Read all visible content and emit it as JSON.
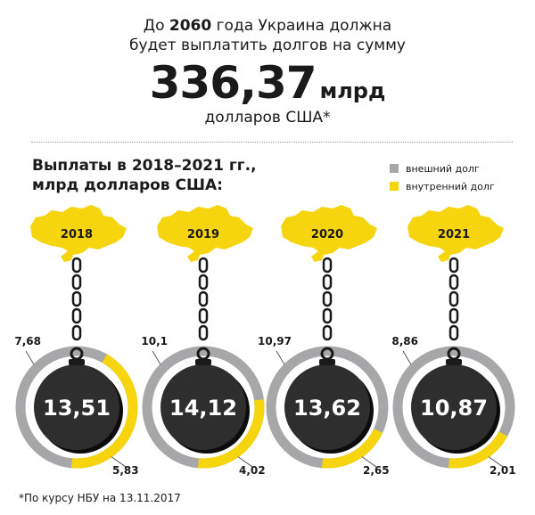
{
  "header": {
    "intro_pre": "До ",
    "intro_year": "2060",
    "intro_post": " года Украина должна",
    "intro_line2": "будет выплатить долгов на сумму",
    "total_value": "336,37",
    "total_unit": "млрд",
    "currency": "долларов США*"
  },
  "subtitle": {
    "line1": "Выплаты в 2018–2021 гг.,",
    "line2": "млрд долларов США:"
  },
  "legend": [
    {
      "label": "внешний долг",
      "color": "#a7a7a9"
    },
    {
      "label": "внутренний долг",
      "color": "#f6d40e"
    }
  ],
  "footnote": "*По курсу НБУ на 13.11.2017",
  "colors": {
    "map": "#f6d40e",
    "ball": "#2e2e2e",
    "external": "#a7a7a9",
    "internal": "#f6d40e"
  },
  "years": [
    {
      "year": "2018",
      "total": "13,51",
      "external": "7,68",
      "internal": "5,83"
    },
    {
      "year": "2019",
      "total": "14,12",
      "external": "10,1",
      "internal": "4,02"
    },
    {
      "year": "2020",
      "total": "13,62",
      "external": "10,97",
      "internal": "2,65"
    },
    {
      "year": "2021",
      "total": "10,87",
      "external": "8,86",
      "internal": "2,01"
    }
  ],
  "chart_data": {
    "type": "pie",
    "title": "Выплаты в 2018–2021 гг., млрд долларов США",
    "categories": [
      "2018",
      "2019",
      "2020",
      "2021"
    ],
    "series": [
      {
        "name": "внешний долг",
        "values": [
          7.68,
          10.1,
          10.97,
          8.86
        ]
      },
      {
        "name": "внутренний долг",
        "values": [
          5.83,
          4.02,
          2.65,
          2.01
        ]
      }
    ],
    "totals": [
      13.51,
      14.12,
      13.62,
      10.87
    ],
    "headline_total": 336.37,
    "headline_text": "До 2060 года Украина должна будет выплатить долгов на сумму 336,37 млрд долларов США*",
    "footnote": "*По курсу НБУ на 13.11.2017",
    "legend_position": "top-right"
  }
}
